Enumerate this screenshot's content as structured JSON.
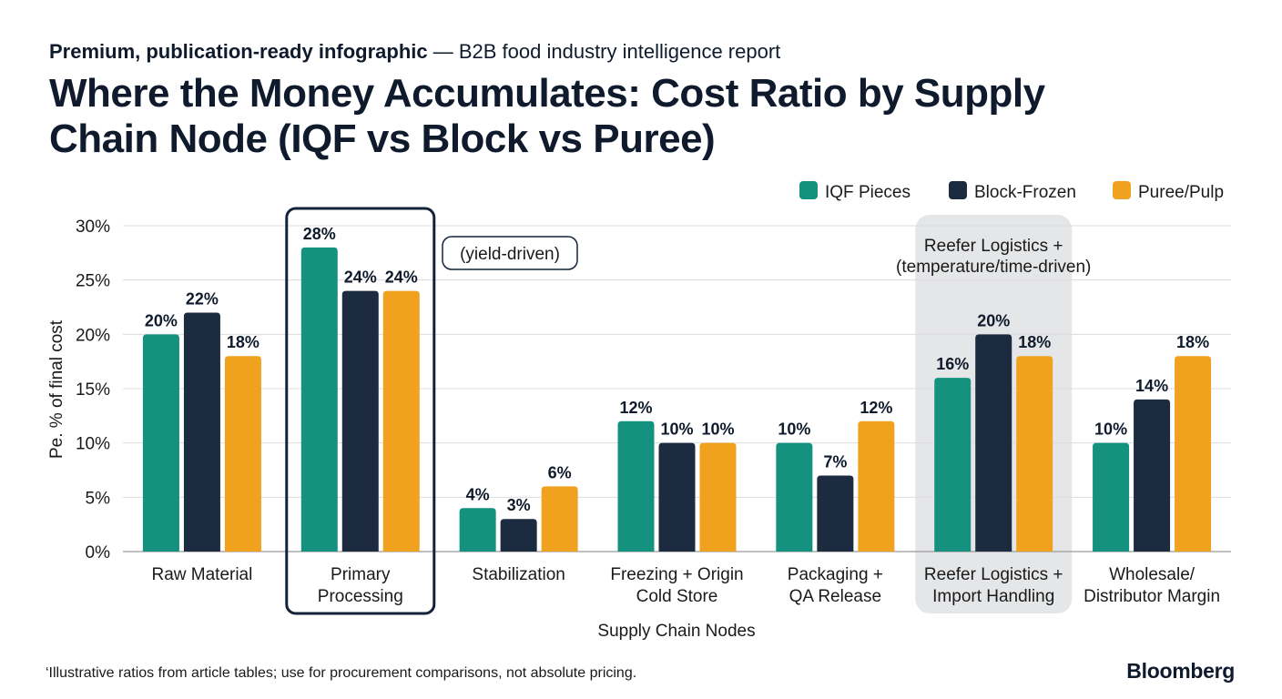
{
  "header": {
    "kicker_bold": "Premium, publication-ready infographic",
    "kicker_rest": " — B2B food industry intelligence report",
    "title": "Where the Money Accumulates: Cost Ratio by Supply Chain Node (IQF vs Block vs Puree)"
  },
  "annotations": {
    "primary": "(yield-driven)",
    "reefer_line1": "Reefer Logistics +",
    "reefer_line2": "(temperature/time-driven)"
  },
  "footer": {
    "footnote": "‘Illustrative ratios from article tables; use for procurement comparisons, not absolute pricing.",
    "brand": "Bloomberg"
  },
  "colors": {
    "iqf": "#14917f",
    "block": "#1c2b40",
    "puree": "#f0a21e",
    "highlight_border": "#13243a",
    "highlight_fill": "#e5e6e8",
    "grid": "#dcdcdc"
  },
  "chart_data": {
    "type": "bar",
    "title": "Where the Money Accumulates: Cost Ratio by Supply Chain Node (IQF vs Block vs Puree)",
    "xlabel": "Supply Chain Nodes",
    "ylabel": "Pe. % of final cost",
    "ylim": [
      0,
      30
    ],
    "yticks": [
      "0%",
      "5%",
      "10%",
      "15%",
      "20%",
      "25%",
      "30%"
    ],
    "ytick_values": [
      0,
      5,
      10,
      15,
      20,
      25,
      30
    ],
    "grid": true,
    "legend_position": "top-right",
    "categories": [
      [
        "Raw Material"
      ],
      [
        "Primary",
        "Processing"
      ],
      [
        "Stabilization"
      ],
      [
        "Freezing + Origin",
        "Cold Store"
      ],
      [
        "Packaging +",
        "QA Release"
      ],
      [
        "Reefer Logistics +",
        "Import Handling"
      ],
      [
        "Wholesale/",
        "Distributor Margin"
      ]
    ],
    "series": [
      {
        "name": "IQF Pieces",
        "values": [
          20,
          28,
          4,
          12,
          10,
          16,
          10
        ]
      },
      {
        "name": "Block-Frozen",
        "values": [
          22,
          24,
          3,
          10,
          7,
          20,
          14
        ]
      },
      {
        "name": "Puree/Pulp",
        "values": [
          18,
          24,
          6,
          10,
          12,
          18,
          18
        ]
      }
    ],
    "data_labels": [
      [
        "20%",
        "28%",
        "4%",
        "12%",
        "10%",
        "16%",
        "10%"
      ],
      [
        "22%",
        "24%",
        "3%",
        "10%",
        "7%",
        "20%",
        "14%"
      ],
      [
        "18%",
        "24%",
        "6%",
        "10%",
        "12%",
        "18%",
        "18%"
      ]
    ],
    "highlight_outline_category": 1,
    "highlight_shaded_category": 5
  }
}
